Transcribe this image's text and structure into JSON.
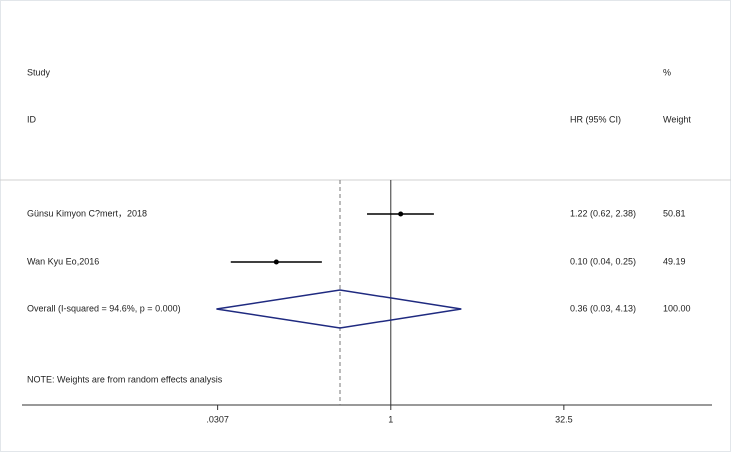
{
  "chart_data": {
    "type": "forest",
    "column_headers": {
      "study_top": "Study",
      "study_bottom": "ID",
      "effect": "HR (95% CI)",
      "weight_top": "%",
      "weight_bottom": "Weight"
    },
    "categories": [
      "Günsu Kimyon C?mert，2018",
      "Wan Kyu Eo,2016"
    ],
    "values": [
      1.22,
      0.1
    ],
    "lower": [
      0.62,
      0.04
    ],
    "upper": [
      2.38,
      0.25
    ],
    "value_labels": [
      "1.22 (0.62, 2.38)",
      "0.10 (0.04, 0.25)"
    ],
    "weights": [
      50.81,
      49.19
    ],
    "overall": {
      "label": "Overall  (I-squared = 94.6%, p = 0.000)",
      "value": 0.36,
      "lower": 0.03,
      "upper": 4.13,
      "value_label": "0.36 (0.03, 4.13)",
      "weight": 100,
      "weight_label": "100.00"
    },
    "note": "NOTE: Weights are from random effects analysis",
    "log_scale": true,
    "xlim": [
      0.0006,
      640
    ],
    "xticks": [
      {
        "value": 0.0307,
        "label": ".0307"
      },
      1,
      32.5
    ],
    "reference_line": 1,
    "color": "#000000",
    "diamond_color": "#1f2a80"
  }
}
